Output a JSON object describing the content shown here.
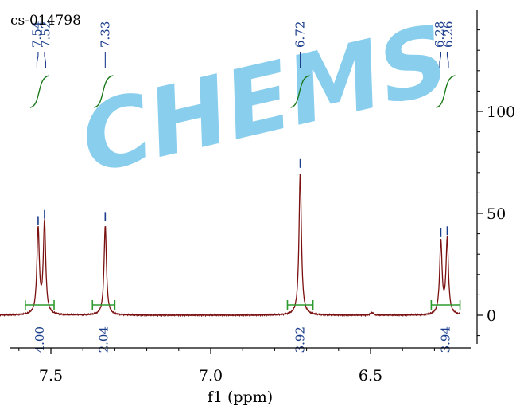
{
  "sample_id": "cs-014798",
  "watermark": "CHEMS",
  "colors": {
    "spectrum": "#7a1010",
    "integral_curve": "#1a7a1a",
    "integral_bracket": "#2e9a2e",
    "peak_label": "#1a3d8c",
    "axis": "#000000",
    "watermark": "#29a6df"
  },
  "chart_data": {
    "type": "line",
    "xlabel": "f1 (ppm)",
    "ylabel": "",
    "x_reversed": true,
    "xlim": [
      7.77,
      6.22
    ],
    "ylim": [
      -15,
      142
    ],
    "x_ticks": [
      7.5,
      7.0,
      6.5
    ],
    "x_tick_labels": [
      "7.5",
      "7.0",
      "6.5"
    ],
    "y_ticks": [
      0,
      50,
      100
    ],
    "y_tick_labels": [
      "0",
      "50",
      "100"
    ],
    "peaks": [
      {
        "ppm": 7.54,
        "height": 42,
        "label": "7.54"
      },
      {
        "ppm": 7.52,
        "height": 45,
        "label": "7.52"
      },
      {
        "ppm": 7.33,
        "height": 44,
        "label": "7.33"
      },
      {
        "ppm": 6.72,
        "height": 70,
        "label": "6.72"
      },
      {
        "ppm": 6.28,
        "height": 36,
        "label": "6.28"
      },
      {
        "ppm": 6.26,
        "height": 37,
        "label": "6.26"
      }
    ],
    "integrals": [
      {
        "from": 7.58,
        "to": 7.49,
        "value": "4.00"
      },
      {
        "from": 7.37,
        "to": 7.3,
        "value": "2.04"
      },
      {
        "from": 6.76,
        "to": 6.68,
        "value": "3.92"
      },
      {
        "from": 6.31,
        "to": 6.22,
        "value": "3.94"
      }
    ]
  }
}
